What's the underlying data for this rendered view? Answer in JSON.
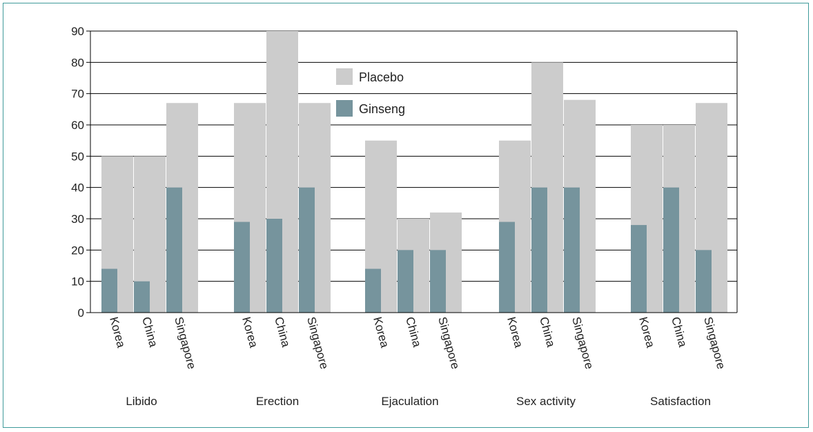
{
  "chart_data": {
    "type": "bar",
    "title": "",
    "xlabel": "",
    "ylabel": "",
    "ylim": [
      0,
      90
    ],
    "yticks": [
      "0",
      "10",
      "20",
      "30",
      "40",
      "50",
      "60",
      "70",
      "80",
      "90"
    ],
    "grid": true,
    "legend": "top-center",
    "stacked": "overlapping",
    "groups": [
      "Libido",
      "Erection",
      "Ejaculation",
      "Sex activity",
      "Satisfaction"
    ],
    "categories": [
      "Korea",
      "China",
      "Singapore"
    ],
    "series": [
      {
        "name": "Placebo",
        "color": "#cccccc",
        "values": [
          [
            50,
            50,
            67
          ],
          [
            67,
            90,
            67
          ],
          [
            55,
            30,
            32
          ],
          [
            55,
            80,
            68
          ],
          [
            60,
            60,
            67
          ]
        ]
      },
      {
        "name": "Ginseng",
        "color": "#76949d",
        "values": [
          [
            14,
            10,
            40
          ],
          [
            29,
            30,
            40
          ],
          [
            14,
            20,
            20
          ],
          [
            29,
            40,
            40
          ],
          [
            28,
            40,
            20
          ]
        ]
      }
    ]
  }
}
